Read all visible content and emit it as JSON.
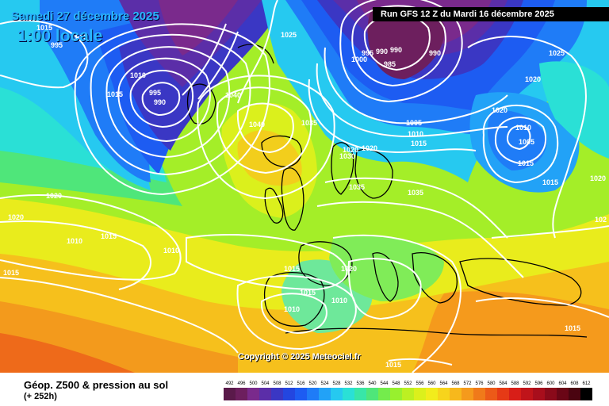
{
  "header": {
    "date": "Samedi 27 décembre 2025",
    "time": "1:00 locale",
    "run": "Run GFS 12 Z du Mardi 16 décembre 2025"
  },
  "copyright": "Copyright © 2025 Meteociel.fr",
  "legend": {
    "title": "Géop. Z500 & pression au sol",
    "subtitle": "(+ 252h)",
    "values": [
      "492",
      "496",
      "500",
      "504",
      "508",
      "512",
      "516",
      "520",
      "524",
      "528",
      "532",
      "536",
      "540",
      "544",
      "548",
      "552",
      "556",
      "560",
      "564",
      "568",
      "572",
      "576",
      "580",
      "584",
      "588",
      "592",
      "596",
      "600",
      "604",
      "608",
      "612"
    ],
    "colors": [
      "#5a1a4a",
      "#6d1f5e",
      "#7a2a8c",
      "#5b2ea8",
      "#3a37c4",
      "#2346e0",
      "#1d5cf2",
      "#1f7cf7",
      "#22a2f7",
      "#26c9f0",
      "#2ae0d6",
      "#38e6a8",
      "#4fe67a",
      "#74ec4c",
      "#98f02e",
      "#bcf022",
      "#dbf01c",
      "#f2ec1c",
      "#f7d41c",
      "#f7b81c",
      "#f59a1c",
      "#f07a1a",
      "#ec5a18",
      "#e63a16",
      "#d81e18",
      "#c0141a",
      "#a80e1c",
      "#8a0a1a",
      "#6a0616",
      "#4a0410",
      "#000000"
    ]
  },
  "isobars": [
    "1015",
    "1010",
    "995",
    "1010",
    "1015",
    "995",
    "990",
    "1025",
    "1040",
    "1040",
    "1035",
    "1000",
    "995",
    "990",
    "985",
    "990",
    "990",
    "1025",
    "1020",
    "1020",
    "1005",
    "1010",
    "1015",
    "1020",
    "1030",
    "1020",
    "1010",
    "1005",
    "1015",
    "1015",
    "1020",
    "1035",
    "1035",
    "1020",
    "1020",
    "1015",
    "1010",
    "1010",
    "1015",
    "1020",
    "1010",
    "1015",
    "1010",
    "1015",
    "1015",
    "1015",
    "102"
  ]
}
